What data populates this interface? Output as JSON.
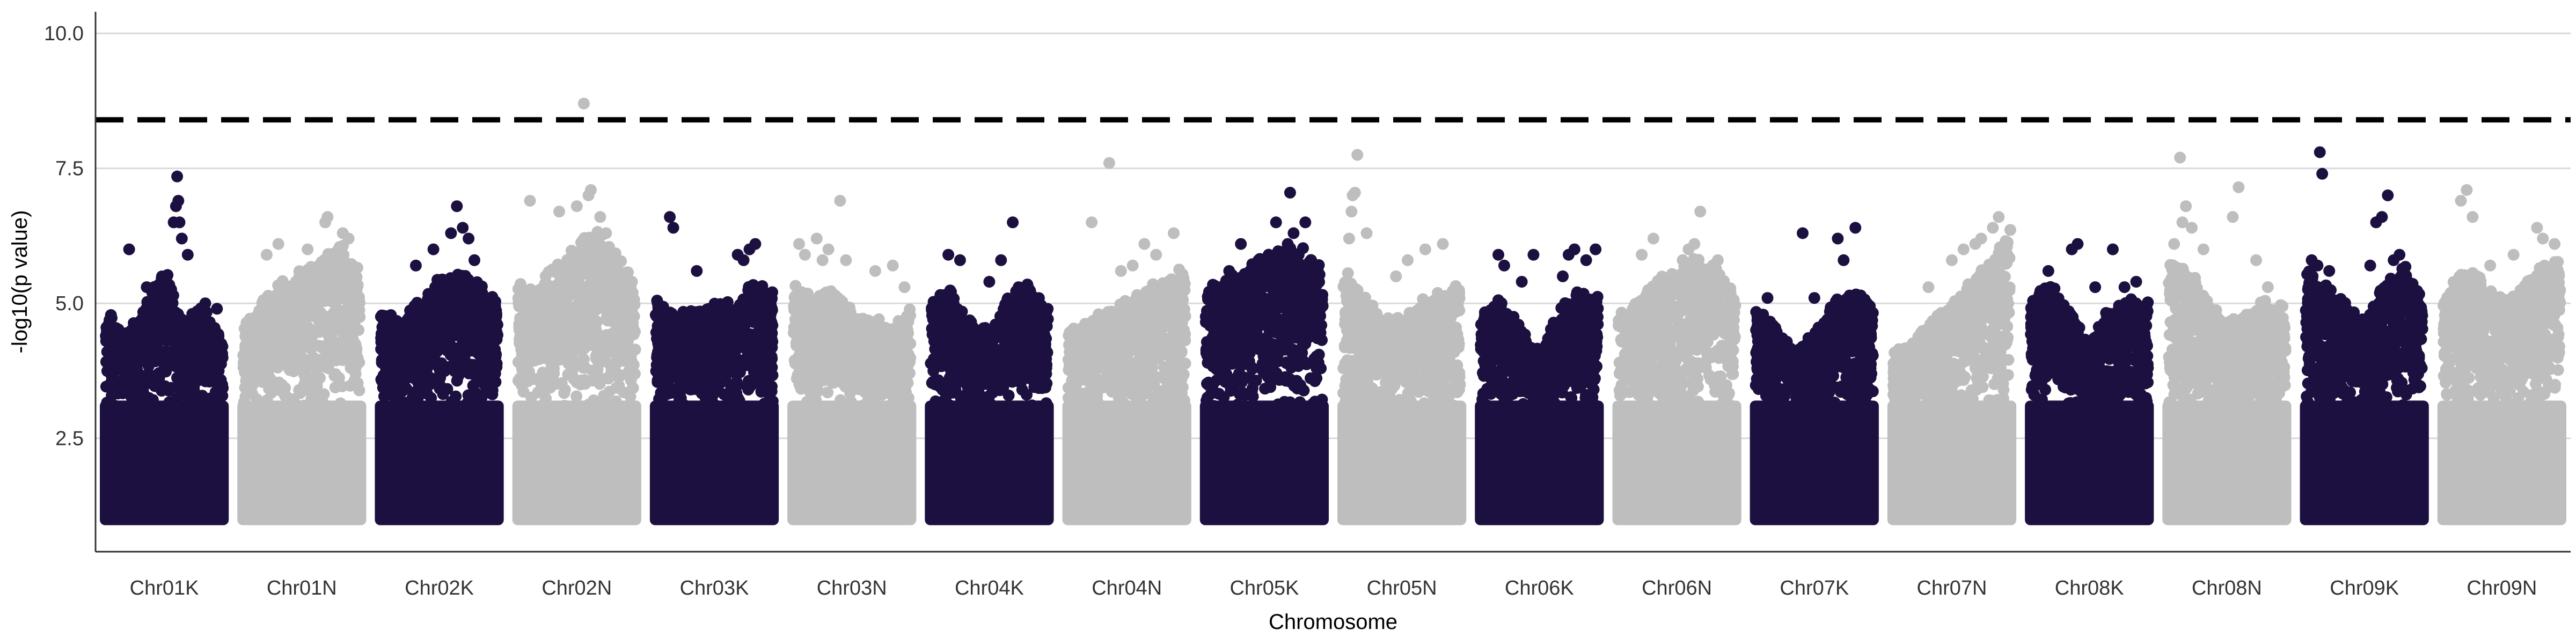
{
  "chart_data": {
    "type": "scatter",
    "subtype": "manhattan",
    "title": "",
    "xlabel": "Chromosome",
    "ylabel": "-log10(p value)",
    "ylim": [
      0.4,
      10.4
    ],
    "yticks": [
      2.5,
      5.0,
      7.5,
      10.0
    ],
    "ytick_labels": [
      "2.5",
      "5.0",
      "7.5",
      "10.0"
    ],
    "grid": "horizontal major gridlines only",
    "legend": "none",
    "significance_threshold": 8.4,
    "threshold_style": "dashed black horizontal line",
    "base_min_value": 1.0,
    "colors": {
      "dark": "#1c1040",
      "light": "#bebebe",
      "grid": "#d9d9d9",
      "threshold": "#000000"
    },
    "categories": [
      "Chr01K",
      "Chr01N",
      "Chr02K",
      "Chr02N",
      "Chr03K",
      "Chr03N",
      "Chr04K",
      "Chr04N",
      "Chr05K",
      "Chr05N",
      "Chr06K",
      "Chr06N",
      "Chr07K",
      "Chr07N",
      "Chr08K",
      "Chr08N",
      "Chr09K",
      "Chr09N"
    ],
    "series": [
      {
        "chromosome": "Chr01K",
        "color": "dark",
        "envelope": [
          4.8,
          4.3,
          4.9,
          5.6,
          4.6,
          4.9,
          4.3
        ],
        "peaks": [
          [
            0.2,
            6.0
          ],
          [
            0.35,
            5.3
          ],
          [
            0.58,
            6.5
          ],
          [
            0.6,
            6.8
          ],
          [
            0.61,
            7.35
          ],
          [
            0.62,
            6.9
          ],
          [
            0.63,
            6.5
          ],
          [
            0.65,
            6.2
          ],
          [
            0.7,
            5.9
          ],
          [
            0.85,
            5.0
          ],
          [
            0.95,
            4.9
          ]
        ]
      },
      {
        "chromosome": "Chr01N",
        "color": "light",
        "envelope": [
          4.5,
          5.0,
          5.3,
          5.6,
          5.8,
          6.0,
          5.5
        ],
        "peaks": [
          [
            0.2,
            5.9
          ],
          [
            0.3,
            6.1
          ],
          [
            0.55,
            6.0
          ],
          [
            0.7,
            6.5
          ],
          [
            0.72,
            6.6
          ],
          [
            0.85,
            6.3
          ],
          [
            0.9,
            6.2
          ]
        ]
      },
      {
        "chromosome": "Chr02K",
        "color": "dark",
        "envelope": [
          4.8,
          4.6,
          5.0,
          5.4,
          5.6,
          5.3,
          5.0
        ],
        "peaks": [
          [
            0.3,
            5.7
          ],
          [
            0.45,
            6.0
          ],
          [
            0.6,
            6.3
          ],
          [
            0.65,
            6.8
          ],
          [
            0.7,
            6.4
          ],
          [
            0.75,
            6.2
          ],
          [
            0.8,
            5.8
          ]
        ]
      },
      {
        "chromosome": "Chr02N",
        "color": "light",
        "envelope": [
          5.4,
          5.2,
          5.8,
          6.0,
          6.4,
          5.9,
          5.4
        ],
        "peaks": [
          [
            0.1,
            6.9
          ],
          [
            0.35,
            6.7
          ],
          [
            0.5,
            6.8
          ],
          [
            0.56,
            8.7
          ],
          [
            0.6,
            7.0
          ],
          [
            0.62,
            7.1
          ],
          [
            0.7,
            6.6
          ],
          [
            0.75,
            6.3
          ]
        ]
      },
      {
        "chromosome": "Chr03K",
        "color": "dark",
        "envelope": [
          5.0,
          4.7,
          4.8,
          4.9,
          5.0,
          5.3,
          5.2
        ],
        "peaks": [
          [
            0.12,
            6.6
          ],
          [
            0.15,
            6.4
          ],
          [
            0.35,
            5.6
          ],
          [
            0.7,
            5.9
          ],
          [
            0.75,
            5.8
          ],
          [
            0.8,
            6.0
          ],
          [
            0.85,
            6.1
          ]
        ]
      },
      {
        "chromosome": "Chr03N",
        "color": "light",
        "envelope": [
          5.3,
          5.0,
          5.2,
          4.8,
          4.6,
          4.6,
          4.9
        ],
        "peaks": [
          [
            0.05,
            6.1
          ],
          [
            0.1,
            5.9
          ],
          [
            0.2,
            6.2
          ],
          [
            0.25,
            5.8
          ],
          [
            0.3,
            6.0
          ],
          [
            0.4,
            6.9
          ],
          [
            0.45,
            5.8
          ],
          [
            0.7,
            5.6
          ],
          [
            0.85,
            5.7
          ],
          [
            0.95,
            5.3
          ]
        ]
      },
      {
        "chromosome": "Chr04K",
        "color": "dark",
        "envelope": [
          5.0,
          5.2,
          4.6,
          4.5,
          5.1,
          5.3,
          4.8
        ],
        "peaks": [
          [
            0.15,
            5.9
          ],
          [
            0.25,
            5.8
          ],
          [
            0.5,
            5.4
          ],
          [
            0.6,
            5.8
          ],
          [
            0.7,
            6.5
          ],
          [
            0.75,
            5.3
          ],
          [
            0.8,
            5.1
          ]
        ]
      },
      {
        "chromosome": "Chr04N",
        "color": "light",
        "envelope": [
          4.4,
          4.6,
          4.8,
          5.0,
          5.2,
          5.4,
          5.6
        ],
        "peaks": [
          [
            0.2,
            6.5
          ],
          [
            0.35,
            7.6
          ],
          [
            0.45,
            5.6
          ],
          [
            0.55,
            5.7
          ],
          [
            0.65,
            6.1
          ],
          [
            0.75,
            5.9
          ],
          [
            0.9,
            6.3
          ]
        ]
      },
      {
        "chromosome": "Chr05K",
        "color": "dark",
        "envelope": [
          5.2,
          5.4,
          5.6,
          5.8,
          6.0,
          5.9,
          5.6
        ],
        "peaks": [
          [
            0.2,
            5.6
          ],
          [
            0.3,
            6.1
          ],
          [
            0.45,
            5.8
          ],
          [
            0.6,
            6.5
          ],
          [
            0.7,
            6.1
          ],
          [
            0.75,
            6.3
          ],
          [
            0.72,
            7.05
          ],
          [
            0.85,
            6.5
          ],
          [
            0.9,
            5.8
          ]
        ]
      },
      {
        "chromosome": "Chr05N",
        "color": "light",
        "envelope": [
          5.6,
          5.1,
          4.6,
          4.7,
          5.0,
          5.1,
          5.3
        ],
        "peaks": [
          [
            0.05,
            6.2
          ],
          [
            0.07,
            6.7
          ],
          [
            0.08,
            7.0
          ],
          [
            0.1,
            7.05
          ],
          [
            0.12,
            7.75
          ],
          [
            0.2,
            6.3
          ],
          [
            0.45,
            5.5
          ],
          [
            0.55,
            5.8
          ],
          [
            0.7,
            6.0
          ],
          [
            0.85,
            6.1
          ]
        ]
      },
      {
        "chromosome": "Chr06K",
        "color": "dark",
        "envelope": [
          4.8,
          5.0,
          4.5,
          4.0,
          4.8,
          5.2,
          5.1
        ],
        "peaks": [
          [
            0.15,
            5.9
          ],
          [
            0.2,
            5.7
          ],
          [
            0.35,
            5.4
          ],
          [
            0.45,
            5.9
          ],
          [
            0.7,
            5.5
          ],
          [
            0.75,
            5.9
          ],
          [
            0.8,
            6.0
          ],
          [
            0.9,
            5.8
          ],
          [
            0.98,
            6.0
          ]
        ]
      },
      {
        "chromosome": "Chr06N",
        "color": "light",
        "envelope": [
          4.8,
          5.0,
          5.4,
          5.6,
          5.8,
          5.6,
          5.1
        ],
        "peaks": [
          [
            0.2,
            5.9
          ],
          [
            0.3,
            6.2
          ],
          [
            0.55,
            5.8
          ],
          [
            0.6,
            6.0
          ],
          [
            0.65,
            6.1
          ],
          [
            0.7,
            6.7
          ],
          [
            0.85,
            5.8
          ]
        ]
      },
      {
        "chromosome": "Chr07K",
        "color": "dark",
        "envelope": [
          4.8,
          4.5,
          4.0,
          4.4,
          5.0,
          5.2,
          4.9
        ],
        "peaks": [
          [
            0.1,
            5.1
          ],
          [
            0.4,
            6.3
          ],
          [
            0.5,
            5.1
          ],
          [
            0.7,
            6.2
          ],
          [
            0.75,
            5.8
          ],
          [
            0.85,
            6.4
          ],
          [
            0.95,
            5.0
          ]
        ]
      },
      {
        "chromosome": "Chr07N",
        "color": "light",
        "envelope": [
          4.0,
          4.3,
          4.6,
          5.0,
          5.4,
          5.9,
          6.3
        ],
        "peaks": [
          [
            0.3,
            5.3
          ],
          [
            0.5,
            5.8
          ],
          [
            0.6,
            6.0
          ],
          [
            0.7,
            6.1
          ],
          [
            0.75,
            6.2
          ],
          [
            0.85,
            6.4
          ],
          [
            0.9,
            6.6
          ]
        ]
      },
      {
        "chromosome": "Chr08K",
        "color": "dark",
        "envelope": [
          5.0,
          5.3,
          4.8,
          4.2,
          4.8,
          5.0,
          5.0
        ],
        "peaks": [
          [
            0.15,
            5.6
          ],
          [
            0.35,
            6.0
          ],
          [
            0.4,
            6.1
          ],
          [
            0.55,
            5.3
          ],
          [
            0.7,
            6.0
          ],
          [
            0.8,
            5.3
          ],
          [
            0.9,
            5.4
          ]
        ]
      },
      {
        "chromosome": "Chr08N",
        "color": "light",
        "envelope": [
          5.8,
          5.6,
          5.0,
          4.6,
          4.8,
          5.0,
          4.8
        ],
        "peaks": [
          [
            0.05,
            6.1
          ],
          [
            0.1,
            7.7
          ],
          [
            0.12,
            6.5
          ],
          [
            0.15,
            6.8
          ],
          [
            0.2,
            6.4
          ],
          [
            0.3,
            6.0
          ],
          [
            0.55,
            6.6
          ],
          [
            0.6,
            7.15
          ],
          [
            0.75,
            5.8
          ],
          [
            0.85,
            5.3
          ]
        ]
      },
      {
        "chromosome": "Chr09K",
        "color": "dark",
        "envelope": [
          5.6,
          5.3,
          4.9,
          4.6,
          5.3,
          5.6,
          5.2
        ],
        "peaks": [
          [
            0.05,
            5.8
          ],
          [
            0.1,
            5.7
          ],
          [
            0.12,
            7.8
          ],
          [
            0.14,
            7.4
          ],
          [
            0.2,
            5.6
          ],
          [
            0.55,
            5.7
          ],
          [
            0.6,
            6.5
          ],
          [
            0.65,
            6.6
          ],
          [
            0.7,
            7.0
          ],
          [
            0.75,
            5.8
          ],
          [
            0.8,
            5.9
          ]
        ]
      },
      {
        "chromosome": "Chr09N",
        "color": "light",
        "envelope": [
          5.0,
          5.6,
          5.4,
          5.0,
          5.3,
          5.6,
          5.8
        ],
        "peaks": [
          [
            0.15,
            6.9
          ],
          [
            0.2,
            7.1
          ],
          [
            0.25,
            6.6
          ],
          [
            0.4,
            5.7
          ],
          [
            0.6,
            5.9
          ],
          [
            0.8,
            6.4
          ],
          [
            0.85,
            6.2
          ],
          [
            0.95,
            6.1
          ]
        ]
      }
    ]
  }
}
